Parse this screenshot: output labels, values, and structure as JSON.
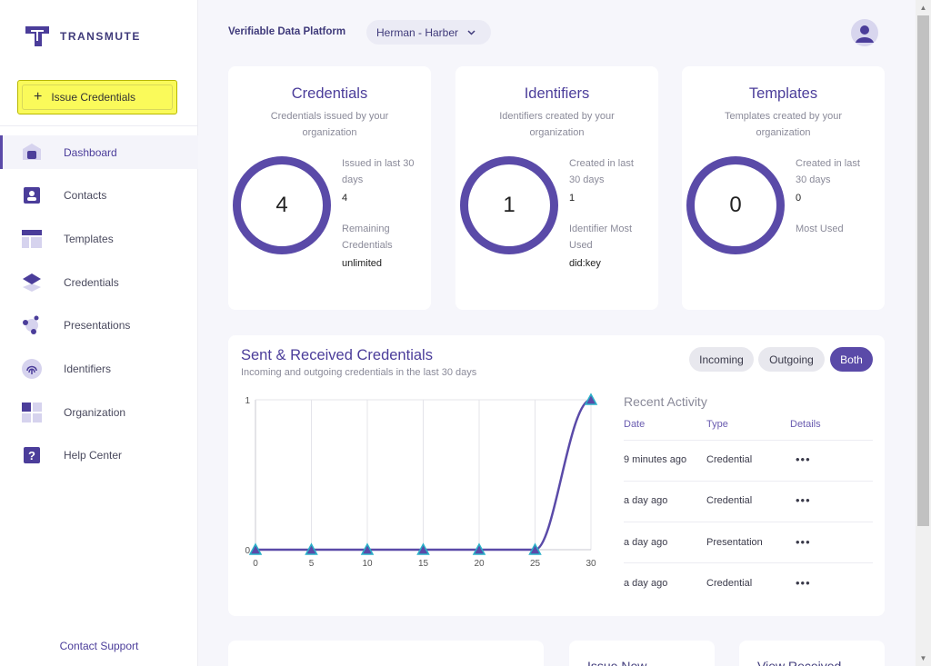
{
  "brand": {
    "name": "TRANSMUTE",
    "accent": "#5a4aa8",
    "highlight": "#fafa5a"
  },
  "sidebar": {
    "issue_label": "Issue Credentials",
    "items": [
      {
        "label": "Dashboard",
        "icon": "home-icon",
        "active": true
      },
      {
        "label": "Contacts",
        "icon": "contact-card-icon"
      },
      {
        "label": "Templates",
        "icon": "template-icon"
      },
      {
        "label": "Credentials",
        "icon": "layers-icon"
      },
      {
        "label": "Presentations",
        "icon": "network-icon"
      },
      {
        "label": "Identifiers",
        "icon": "fingerprint-icon"
      },
      {
        "label": "Organization",
        "icon": "grid-icon"
      },
      {
        "label": "Help Center",
        "icon": "help-icon"
      }
    ],
    "contact_support": "Contact Support"
  },
  "header": {
    "platform": "Verifiable Data Platform",
    "org": "Herman - Harber"
  },
  "cards": [
    {
      "title": "Credentials",
      "subtitle": "Credentials issued by your organization",
      "count": "4",
      "stat1_label": "Issued in last 30 days",
      "stat1_value": "4",
      "stat2_label": "Remaining Credentials",
      "stat2_value": "unlimited"
    },
    {
      "title": "Identifiers",
      "subtitle": "Identifiers created by your organization",
      "count": "1",
      "stat1_label": "Created in last 30 days",
      "stat1_value": "1",
      "stat2_label": "Identifier Most Used",
      "stat2_value": "did:key"
    },
    {
      "title": "Templates",
      "subtitle": "Templates created by your organization",
      "count": "0",
      "stat1_label": "Created in last 30 days",
      "stat1_value": "0",
      "stat2_label": "Most Used",
      "stat2_value": ""
    }
  ],
  "activity": {
    "title": "Sent & Received Credentials",
    "subtitle": "Incoming and outgoing credentials in the last 30 days",
    "filters": [
      "Incoming",
      "Outgoing",
      "Both"
    ],
    "selected_filter": "Both"
  },
  "chart_data": {
    "type": "line",
    "x": [
      0,
      5,
      10,
      15,
      20,
      25,
      30
    ],
    "series": [
      {
        "values": [
          0,
          0,
          0,
          0,
          0,
          0,
          1
        ]
      }
    ],
    "xlim": [
      0,
      30
    ],
    "ylim": [
      0,
      1
    ],
    "xticks": [
      "0",
      "5",
      "10",
      "15",
      "20",
      "25",
      "30"
    ],
    "yticks": [
      "0",
      "1"
    ],
    "grid": "vertical",
    "marker": "triangle",
    "color": "#5a4aa8",
    "marker_color": "#2ab0c8"
  },
  "recent": {
    "title": "Recent Activity",
    "headers": [
      "Date",
      "Type",
      "Details"
    ],
    "rows": [
      {
        "date": "9 minutes ago",
        "type": "Credential",
        "details": "•••"
      },
      {
        "date": "a day ago",
        "type": "Credential",
        "details": "•••"
      },
      {
        "date": "a day ago",
        "type": "Presentation",
        "details": "•••"
      },
      {
        "date": "a day ago",
        "type": "Credential",
        "details": "•••"
      }
    ]
  },
  "bottom_cards": [
    "Issue New",
    "View Received"
  ]
}
